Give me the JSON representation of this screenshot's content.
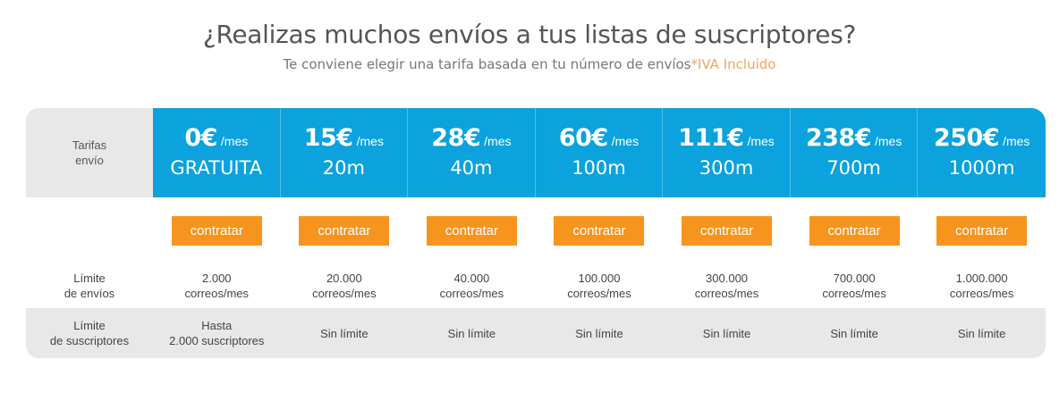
{
  "header": {
    "title": "¿Realizas muchos envíos a tus listas de suscriptores?",
    "subtitle": "Te conviene elegir una tarifa basada en tu número de envíos",
    "iva_note": "*IVA Incluido"
  },
  "table": {
    "rate_label_line1": "Tarifas",
    "rate_label_line2": "envío",
    "per_month": "/mes",
    "button_label": "contratar",
    "limit_label_line1": "Límite",
    "limit_label_line2": "de envíos",
    "subs_label_line1": "Límite",
    "subs_label_line2": "de suscriptores",
    "plans": [
      {
        "price": "0€",
        "volume": "GRATUITA",
        "limit_line1": "2.000",
        "limit_line2": "correos/mes",
        "subs_line1": "Hasta",
        "subs_line2": "2.000 suscriptores"
      },
      {
        "price": "15€",
        "volume": "20m",
        "limit_line1": "20.000",
        "limit_line2": "correos/mes",
        "subs_line1": "Sin límite",
        "subs_line2": ""
      },
      {
        "price": "28€",
        "volume": "40m",
        "limit_line1": "40.000",
        "limit_line2": "correos/mes",
        "subs_line1": "Sin límite",
        "subs_line2": ""
      },
      {
        "price": "60€",
        "volume": "100m",
        "limit_line1": "100.000",
        "limit_line2": "correos/mes",
        "subs_line1": "Sin límite",
        "subs_line2": ""
      },
      {
        "price": "111€",
        "volume": "300m",
        "limit_line1": "300.000",
        "limit_line2": "correos/mes",
        "subs_line1": "Sin límite",
        "subs_line2": ""
      },
      {
        "price": "238€",
        "volume": "700m",
        "limit_line1": "700.000",
        "limit_line2": "correos/mes",
        "subs_line1": "Sin límite",
        "subs_line2": ""
      },
      {
        "price": "250€",
        "volume": "1000m",
        "limit_line1": "1.000.000",
        "limit_line2": "correos/mes",
        "subs_line1": "Sin límite",
        "subs_line2": ""
      }
    ]
  },
  "colors": {
    "header_blue": "#0ba2de",
    "button_orange": "#f7941d",
    "row_gray": "#e8e8e8",
    "iva_orange": "#f4a460"
  }
}
